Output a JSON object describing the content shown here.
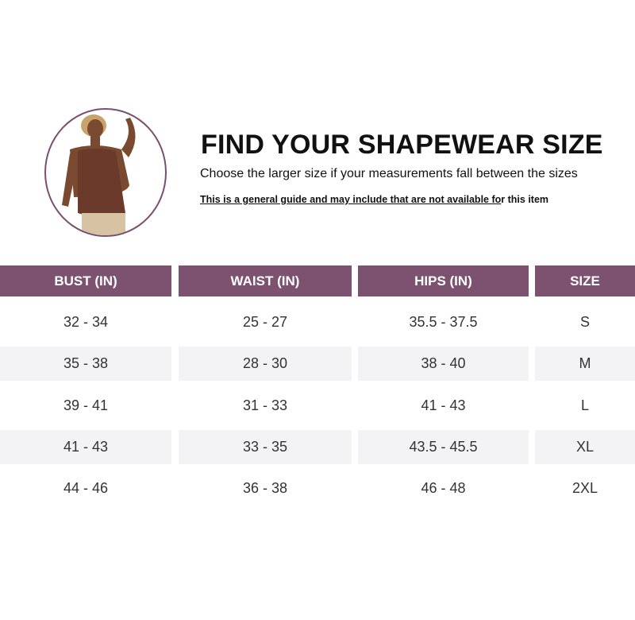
{
  "header": {
    "title": "FIND YOUR SHAPEWEAR SIZE",
    "subtitle": "Choose the larger size if your measurements fall between the sizes",
    "note_underlined": "This is a general guide and may include that are not available fo",
    "note_rest": "r this item"
  },
  "colors": {
    "header_bg": "#7d5170",
    "stripe": "#f3f2f4"
  },
  "table": {
    "columns": [
      "BUST (IN)",
      "WAIST (IN)",
      "HIPS (IN)",
      "SIZE"
    ],
    "rows": [
      [
        "32 - 34",
        "25 - 27",
        "35.5 - 37.5",
        "S"
      ],
      [
        "35 - 38",
        "28 - 30",
        "38 - 40",
        "M"
      ],
      [
        "39 - 41",
        "31 - 33",
        "41 - 43",
        "L"
      ],
      [
        "41 - 43",
        "33 - 35",
        "43.5 - 45.5",
        "XL"
      ],
      [
        "44 - 46",
        "36 - 38",
        "46 - 48",
        "2XL"
      ]
    ]
  }
}
